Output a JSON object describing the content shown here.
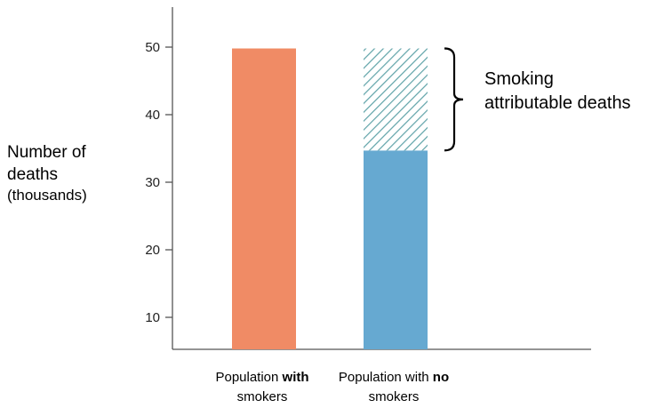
{
  "chart_data": {
    "type": "bar",
    "ylabel_line1": "Number of",
    "ylabel_line2": "deaths",
    "ylabel_line3": "(thousands)",
    "ylim": [
      5,
      55
    ],
    "yticks": [
      10,
      20,
      30,
      40,
      50
    ],
    "grid": false,
    "categories": [
      {
        "pre": "Population ",
        "bold": "with",
        "post": " smokers"
      },
      {
        "pre": "Population with ",
        "bold": "no",
        "post": " smokers"
      }
    ],
    "series": [
      {
        "values": [
          49.8,
          34.7
        ],
        "colors": [
          "#F08B65",
          "#66A9D1"
        ]
      },
      {
        "values": [
          0,
          15.1
        ],
        "pattern": "hatched",
        "color": "#5FA3A8"
      }
    ],
    "annotation": {
      "line1": "Smoking",
      "line2": "attributable deaths",
      "range": [
        34.7,
        49.8
      ]
    }
  }
}
